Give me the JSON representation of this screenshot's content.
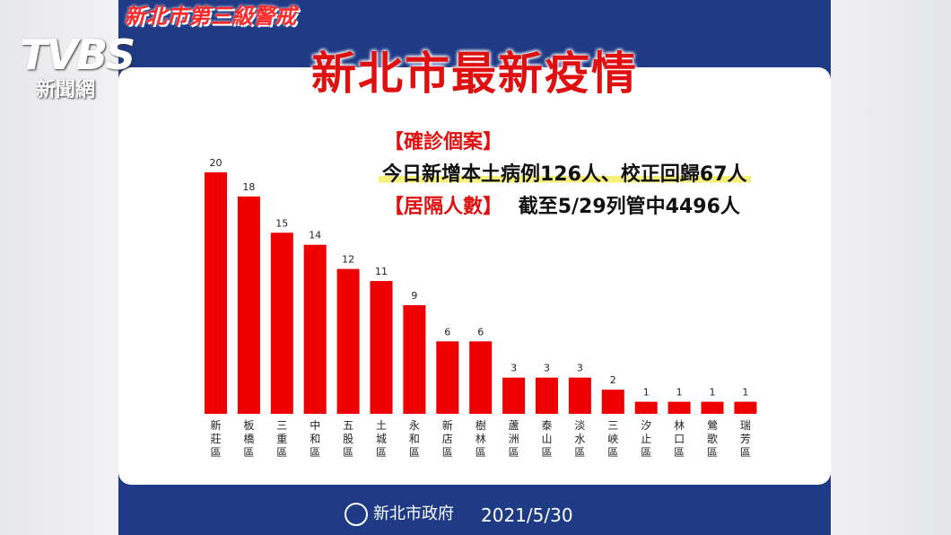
{
  "banner": "新北市第三級警戒",
  "title": "新北市最新疫情",
  "confirmed_label": "【確診個案】",
  "confirmed_text": "今日新增本土病例126人、校正回歸67人",
  "quarantine_label": "【居隔人數】",
  "quarantine_text": "截至5/29列管中4496人",
  "footer": {
    "org": "新北市政府",
    "date": "2021/5/30"
  },
  "channel": {
    "name": "TVBS",
    "sub": "新聞網"
  },
  "colors": {
    "bar": "#ee0000",
    "title": "#e01010",
    "panel_border": "#1f3b86"
  },
  "chart_data": {
    "type": "bar",
    "title": "",
    "xlabel": "",
    "ylabel": "",
    "ylim": [
      0,
      20
    ],
    "categories": [
      "新莊區",
      "板橋區",
      "三重區",
      "中和區",
      "五股區",
      "土城區",
      "永和區",
      "新店區",
      "樹林區",
      "蘆洲區",
      "泰山區",
      "淡水區",
      "三峽區",
      "汐止區",
      "林口區",
      "鶯歌區",
      "瑞芳區"
    ],
    "values": [
      20,
      18,
      15,
      14,
      12,
      11,
      9,
      6,
      6,
      3,
      3,
      3,
      2,
      1,
      1,
      1,
      1
    ]
  }
}
